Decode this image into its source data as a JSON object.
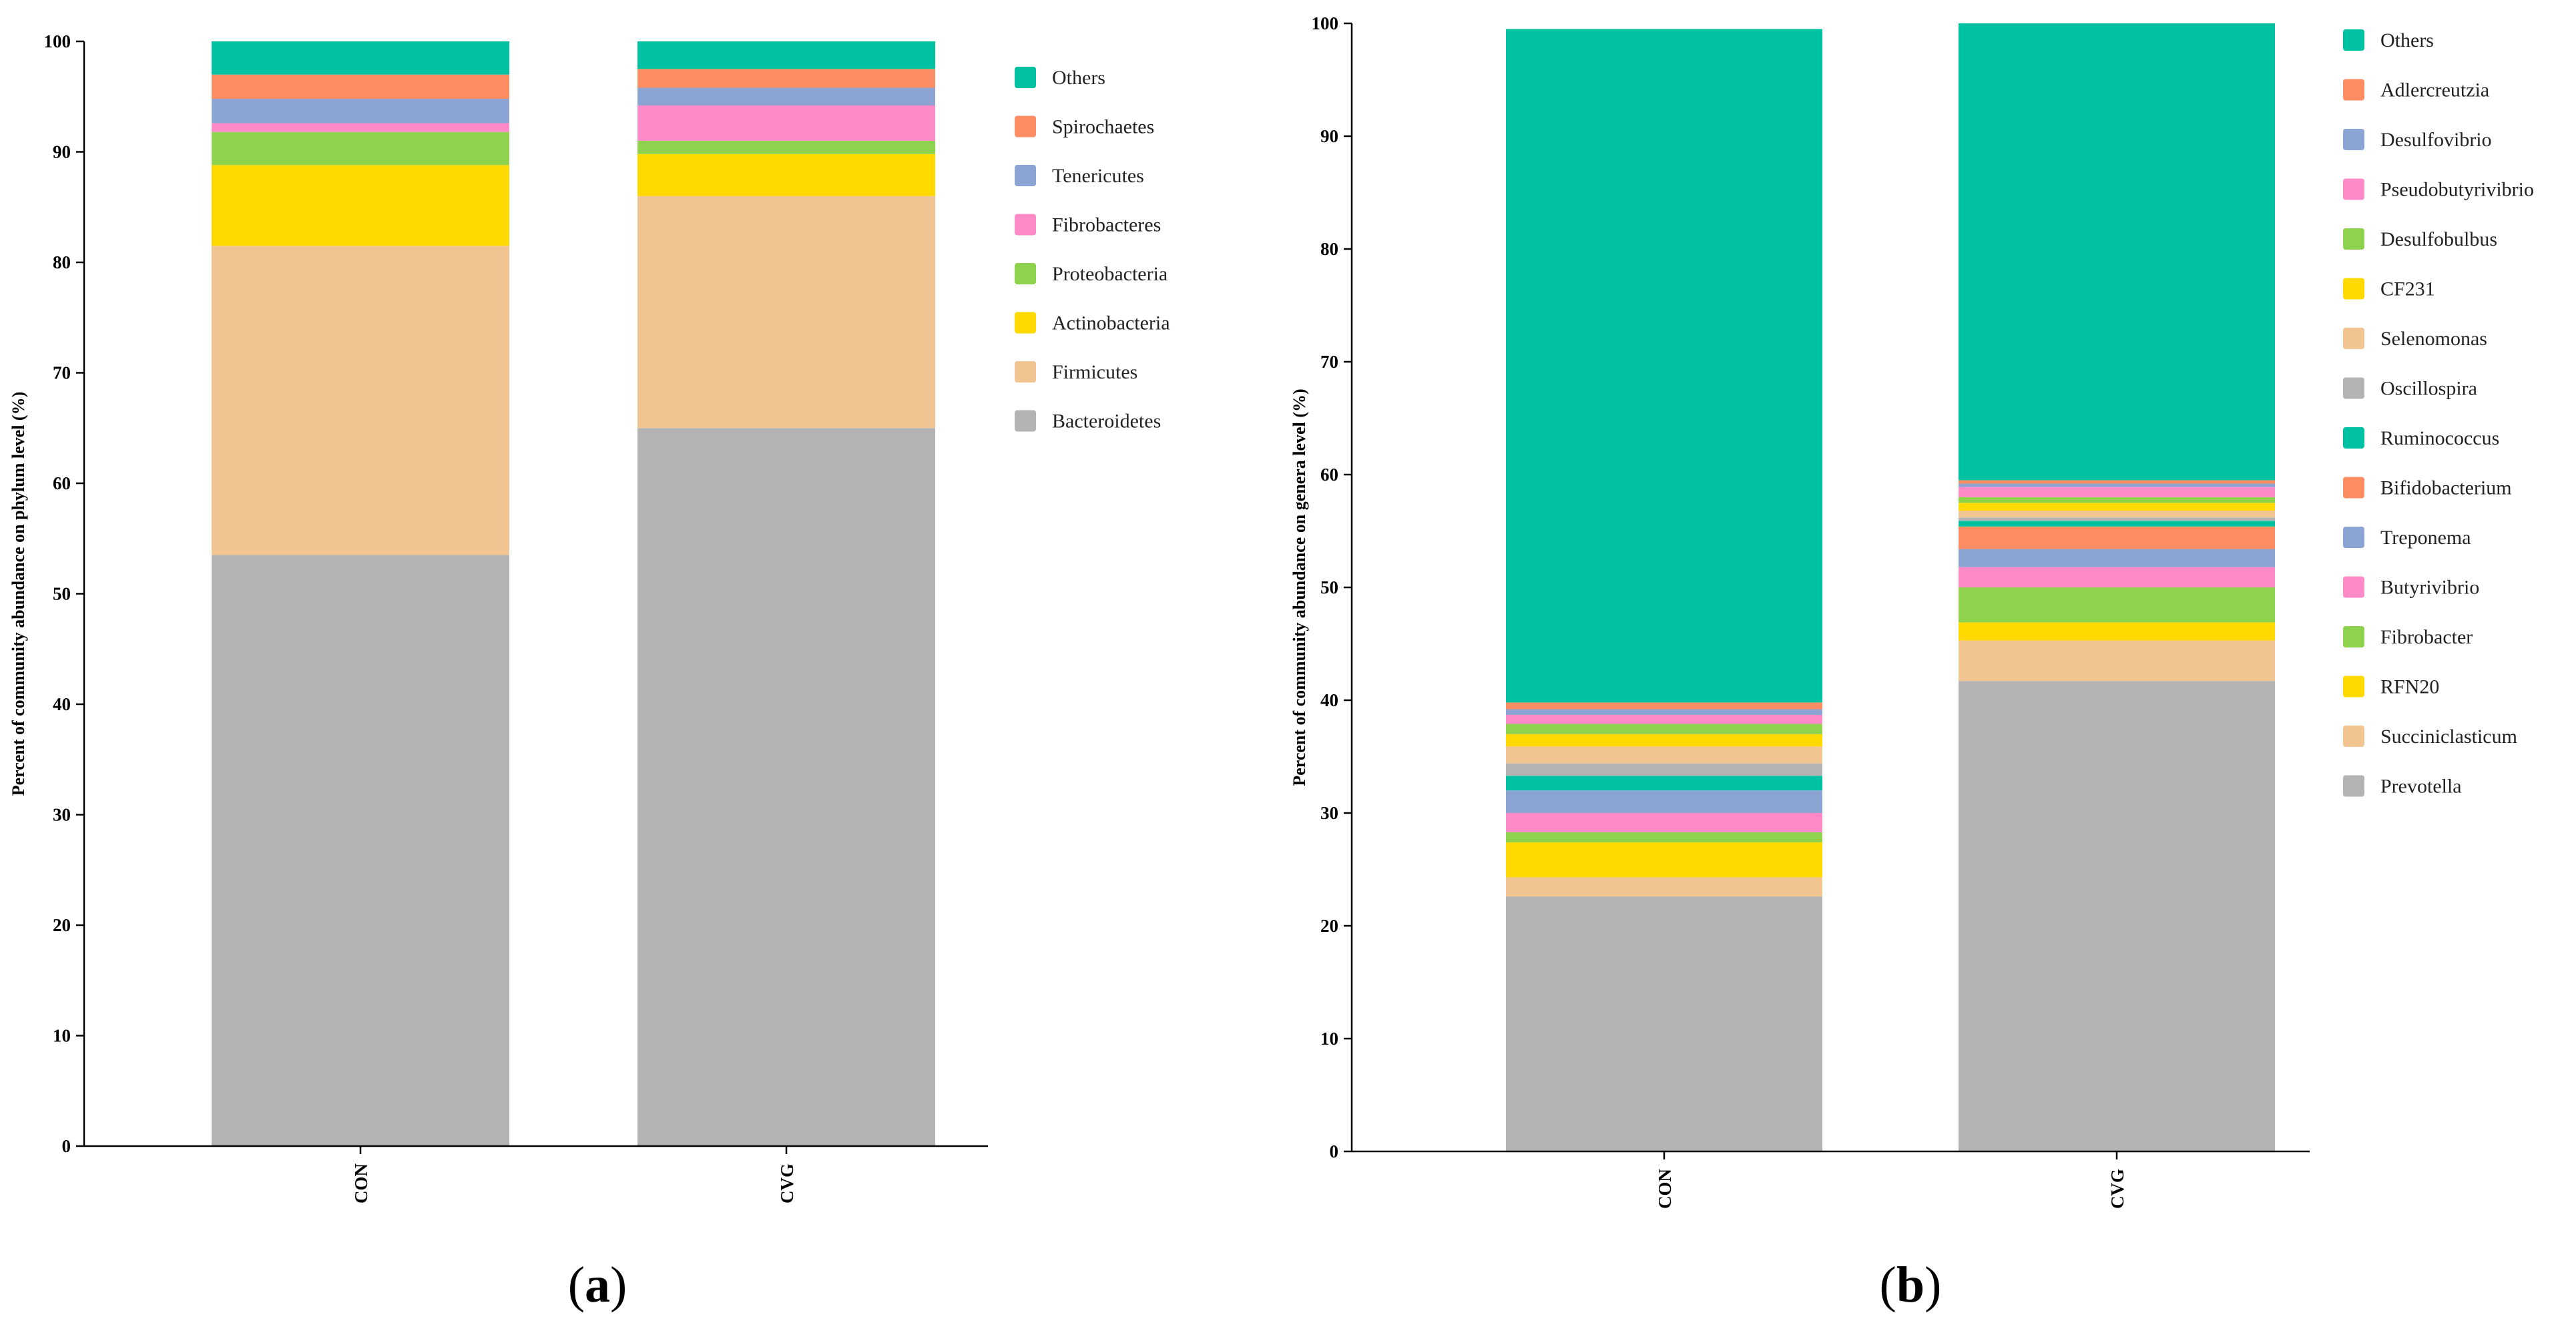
{
  "chart_data": [
    {
      "type": "bar",
      "stacked": true,
      "panel_label_open": "(",
      "panel_label_letter": "a",
      "panel_label_close": ")",
      "ylabel": "Percent of community abundance on phylum level (%)",
      "xlabel": "",
      "ylim": [
        0,
        100
      ],
      "yticks": [
        0,
        10,
        20,
        30,
        40,
        50,
        60,
        70,
        80,
        90,
        100
      ],
      "categories": [
        "CON",
        "CVG"
      ],
      "legend_position": "right",
      "series": [
        {
          "name": "Bacteroidetes",
          "color": "#b3b3b3",
          "values": [
            53.5,
            65.0
          ]
        },
        {
          "name": "Firmicutes",
          "color": "#f0c592",
          "values": [
            28.0,
            21.0
          ]
        },
        {
          "name": "Actinobacteria",
          "color": "#ffd900",
          "values": [
            7.3,
            3.8
          ]
        },
        {
          "name": "Proteobacteria",
          "color": "#8dd34d",
          "values": [
            3.0,
            1.2
          ]
        },
        {
          "name": "Fibrobacteres",
          "color": "#ff8ac8",
          "values": [
            0.8,
            3.2
          ]
        },
        {
          "name": "Tenericutes",
          "color": "#8ca4d4",
          "values": [
            2.2,
            1.6
          ]
        },
        {
          "name": "Spirochaetes",
          "color": "#fc8d62",
          "values": [
            2.2,
            1.7
          ]
        },
        {
          "name": "Others",
          "color": "#00c2a3",
          "values": [
            3.0,
            2.5
          ]
        }
      ]
    },
    {
      "type": "bar",
      "stacked": true,
      "panel_label_open": "(",
      "panel_label_letter": "b",
      "panel_label_close": ")",
      "ylabel": "Percent of community abundance on genera level (%)",
      "xlabel": "",
      "ylim": [
        0,
        100
      ],
      "yticks": [
        0,
        10,
        20,
        30,
        40,
        50,
        60,
        70,
        80,
        90,
        100
      ],
      "categories": [
        "CON",
        "CVG"
      ],
      "legend_position": "right",
      "series": [
        {
          "name": "Prevotella",
          "color": "#b3b3b3",
          "values": [
            22.6,
            41.7
          ]
        },
        {
          "name": "Succiniclasticum",
          "color": "#f0c592",
          "values": [
            1.7,
            3.6
          ]
        },
        {
          "name": "RFN20",
          "color": "#ffd900",
          "values": [
            3.1,
            1.6
          ]
        },
        {
          "name": "Fibrobacter",
          "color": "#8dd34d",
          "values": [
            0.9,
            3.1
          ]
        },
        {
          "name": "Butyrivibrio",
          "color": "#ff8ac8",
          "values": [
            1.7,
            1.8
          ]
        },
        {
          "name": "Treponema",
          "color": "#8ca4d4",
          "values": [
            2.0,
            1.6
          ]
        },
        {
          "name": "Bifidobacterium",
          "color": "#fc8d62",
          "values": [
            0.0,
            2.0
          ]
        },
        {
          "name": "Ruminococcus",
          "color": "#00c2a3",
          "values": [
            1.3,
            0.5
          ]
        },
        {
          "name": "Oscillospira",
          "color": "#b3b3b3",
          "values": [
            1.1,
            0.3
          ]
        },
        {
          "name": "Selenomonas",
          "color": "#f0c592",
          "values": [
            1.5,
            0.6
          ]
        },
        {
          "name": "CF231",
          "color": "#ffd900",
          "values": [
            1.1,
            0.7
          ]
        },
        {
          "name": "Desulfobulbus",
          "color": "#8dd34d",
          "values": [
            0.9,
            0.5
          ]
        },
        {
          "name": "Pseudobutyrivibrio",
          "color": "#ff8ac8",
          "values": [
            0.8,
            0.9
          ]
        },
        {
          "name": "Desulfovibrio",
          "color": "#8ca4d4",
          "values": [
            0.5,
            0.3
          ]
        },
        {
          "name": "Adlercreutzia",
          "color": "#fc8d62",
          "values": [
            0.6,
            0.3
          ]
        },
        {
          "name": "Others",
          "color": "#00c2a3",
          "values": [
            59.7,
            40.5
          ]
        }
      ]
    }
  ]
}
